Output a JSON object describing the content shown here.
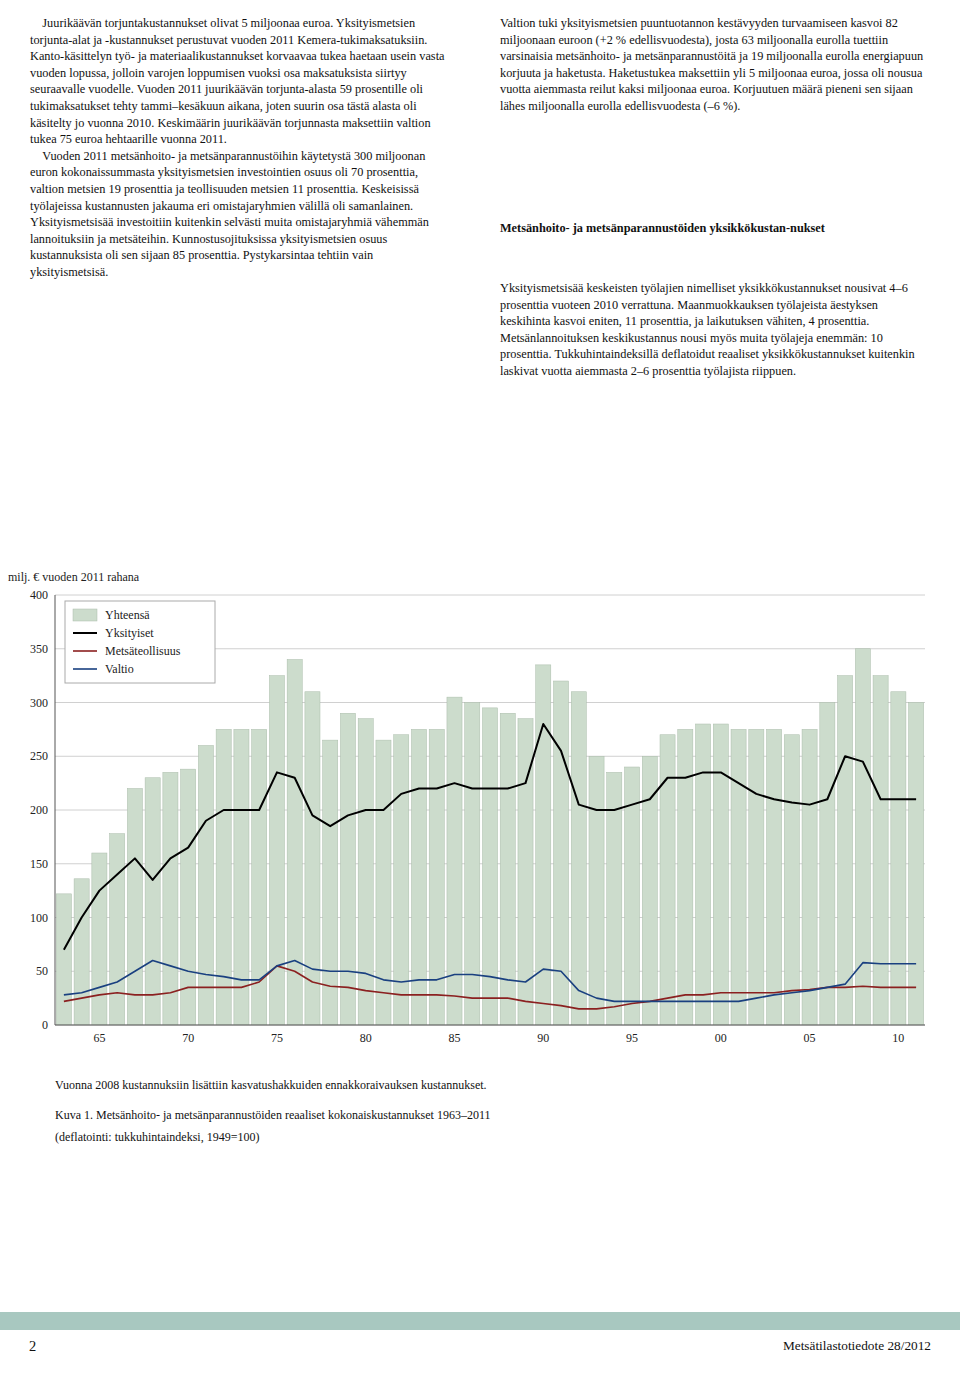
{
  "chart_data": {
    "type": "bar",
    "title": "Kuva 1. Metsänhoito- ja metsänparannustöiden reaaliset kokonaiskustannukset 1963–2011",
    "subtitle": "(deflatointi: tukkuhintaindeksi, 1949=100)",
    "y_label": "milj. € vuoden 2011 rahana",
    "annotations": [
      "Vuonna 2008 kustannuksiin lisättiin kasvatushakkuiden ennakkoraivauksen kustannukset."
    ],
    "categories": [
      null,
      null,
      "65",
      null,
      null,
      null,
      null,
      "70",
      null,
      null,
      null,
      null,
      "75",
      null,
      null,
      null,
      null,
      "80",
      null,
      null,
      null,
      null,
      "85",
      null,
      null,
      null,
      null,
      "90",
      null,
      null,
      null,
      null,
      "95",
      null,
      null,
      null,
      null,
      "00",
      null,
      null,
      null,
      null,
      "05",
      null,
      null,
      null,
      null,
      "10",
      null
    ],
    "series": [
      {
        "name": "Yhteensä",
        "type": "bar",
        "color": "#ccdccc",
        "values": [
          122,
          136,
          160,
          178,
          220,
          230,
          235,
          238,
          260,
          275,
          275,
          275,
          325,
          340,
          310,
          265,
          290,
          285,
          265,
          270,
          275,
          275,
          305,
          300,
          295,
          290,
          285,
          335,
          320,
          310,
          250,
          235,
          240,
          250,
          270,
          275,
          280,
          280,
          275,
          275,
          275,
          270,
          275,
          300,
          325,
          350,
          325,
          310,
          300
        ]
      },
      {
        "name": "Yksityiset",
        "type": "line",
        "color": "#000000",
        "values": [
          70,
          100,
          125,
          140,
          155,
          135,
          155,
          165,
          190,
          200,
          200,
          200,
          235,
          230,
          195,
          185,
          195,
          200,
          200,
          215,
          220,
          220,
          225,
          220,
          220,
          220,
          225,
          280,
          255,
          205,
          200,
          200,
          205,
          210,
          230,
          230,
          235,
          235,
          225,
          215,
          210,
          207,
          205,
          210,
          250,
          245,
          210,
          210,
          210
        ]
      },
      {
        "name": "Metsäteollisuus",
        "type": "line",
        "color": "#8b2020",
        "values": [
          22,
          25,
          28,
          30,
          28,
          28,
          30,
          35,
          35,
          35,
          35,
          40,
          55,
          50,
          40,
          36,
          35,
          32,
          30,
          28,
          28,
          28,
          27,
          25,
          25,
          25,
          22,
          20,
          18,
          15,
          15,
          17,
          20,
          22,
          25,
          28,
          28,
          30,
          30,
          30,
          30,
          32,
          33,
          35,
          35,
          36,
          35,
          35,
          35
        ]
      },
      {
        "name": "Valtio",
        "type": "line",
        "color": "#1a4080",
        "values": [
          28,
          30,
          35,
          40,
          50,
          60,
          55,
          50,
          47,
          45,
          42,
          42,
          55,
          60,
          52,
          50,
          50,
          48,
          42,
          40,
          42,
          42,
          47,
          47,
          45,
          42,
          40,
          52,
          50,
          32,
          25,
          22,
          22,
          22,
          22,
          22,
          22,
          22,
          22,
          25,
          28,
          30,
          32,
          35,
          38,
          58,
          57,
          57,
          57
        ]
      }
    ],
    "ylim": [
      0,
      400
    ],
    "yticks": [
      0,
      50,
      100,
      150,
      200,
      250,
      300,
      350,
      400
    ],
    "grid": true,
    "legend": "upper left"
  },
  "page": {
    "text_left": "    Juurikäävän torjuntakustannukset olivat 5 miljoonaa euroa. Yksityismetsien torjunta-alat ja -kustannukset perustuvat vuoden 2011 Kemera-tukimaksatuksiin. Kanto-käsittelyn työ- ja materiaalikustannukset korvaavaa tukea haetaan usein vasta vuoden lopussa, jolloin varojen loppumisen vuoksi osa maksatuksista siirtyy seuraavalle vuodelle. Vuoden 2011 juurikäävän torjunta-alasta 59 prosentille oli tukimaksatukset tehty tammi–kesäkuun aikana, joten suurin osa tästä alasta oli käsitelty jo vuonna 2010. Keskimäärin juurikäävän torjunnasta maksettiin valtion tukea 75 euroa hehtaarille vuonna 2011.\n    Vuoden 2011 metsänhoito- ja metsänparannustöihin käytetystä 300 miljoonan euron kokonaissummasta yksityismetsien investointien osuus oli 70 prosenttia, valtion metsien 19 prosenttia ja teollisuuden metsien 11 prosenttia. Keskeisissä työlajeissa kustannusten jakauma eri omistajaryhmien välillä oli samanlainen. Yksityismetsisää investoitiin kuitenkin selvästi muita omistajaryhmiä vähemmän lannoituksiin ja metsäteihin. Kunnostusojituksissa yksityismetsien osuus kustannuksista oli sen sijaan 85 prosenttia. Pystykarsintaa tehtiin vain yksityismetsisä.",
    "text_right_p1": "Valtion tuki yksityismetsien puuntuotannon kestävyyden turvaamiseen kasvoi 82 miljoonaan euroon (+2 % edellisvuodesta), josta 63 miljoonalla eurolla tuettiin varsinaisia metsänhoito- ja metsänparannustöitä ja 19 miljoonalla eurolla energiapuun korjuuta ja haketusta. Haketustukea maksettiin yli 5 miljoonaa euroa, jossa oli nousua vuotta aiemmasta reilut kaksi miljoonaa euroa. Korjuutuen määrä pieneni sen sijaan lähes miljoonalla eurolla edellisvuodesta (–6 %).",
    "text_right_heading": "Metsänhoito- ja metsänparannustöiden yksikkökustan-nukset",
    "text_right_p2": "Yksityismetsisää keskeisten työlajien nimelliset yksikkökustannukset nousivat 4–6 prosenttia vuoteen 2010 verrattuna. Maanmuokkauksen työlajeista äestyksen keskihinta kasvoi eniten, 11 prosenttia, ja laikutuksen vähiten, 4 prosenttia. Metsänlannoituksen keskikustannus nousi myös muita työlajeja enemmän: 10 prosenttia. Tukkuhintaindeksillä deflatoidut reaaliset yksikkökustannukset kuitenkin laskivat vuotta aiemmasta 2–6 prosenttia työlajista riippuen.",
    "footer_left": "2",
    "footer_right": "Metsätilastotiedote 28/2012"
  }
}
